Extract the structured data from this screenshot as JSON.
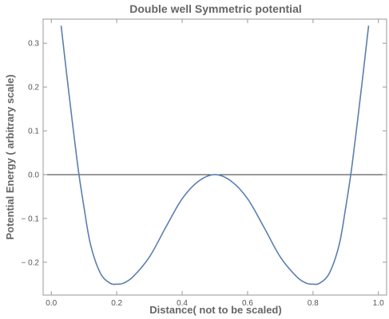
{
  "chart_data": {
    "type": "line",
    "title": "Double well Symmetric potential",
    "xlabel": "Distance( not to be scaled)",
    "ylabel": "Potential Energy ( arbitrary scale)",
    "xlim": [
      -0.025,
      1.025
    ],
    "ylim": [
      -0.275,
      0.355
    ],
    "x_ticks": [
      0.0,
      0.2,
      0.4,
      0.6,
      0.8,
      1.0
    ],
    "x_tick_labels": [
      "0.0",
      "0.2",
      "0.4",
      "0.6",
      "0.8",
      "1.0"
    ],
    "y_ticks": [
      -0.2,
      -0.1,
      0.0,
      0.1,
      0.2,
      0.3
    ],
    "y_tick_labels": [
      "− 0.2",
      "− 0.1",
      "0.0",
      "0.1",
      "0.2",
      "0.3"
    ],
    "series": [
      {
        "color": "#5b7fae",
        "x": [
          0.03,
          0.05,
          0.08,
          0.1,
          0.12,
          0.15,
          0.18,
          0.2,
          0.22,
          0.25,
          0.3,
          0.35,
          0.4,
          0.45,
          0.5,
          0.55,
          0.6,
          0.65,
          0.7,
          0.75,
          0.78,
          0.8,
          0.82,
          0.85,
          0.88,
          0.9,
          0.92,
          0.95,
          0.97
        ],
        "y": [
          0.34,
          0.21,
          0.025,
          -0.075,
          -0.16,
          -0.225,
          -0.248,
          -0.25,
          -0.248,
          -0.233,
          -0.188,
          -0.12,
          -0.055,
          -0.015,
          0.0,
          -0.015,
          -0.055,
          -0.12,
          -0.188,
          -0.233,
          -0.248,
          -0.25,
          -0.248,
          -0.225,
          -0.16,
          -0.075,
          0.025,
          0.21,
          0.34
        ]
      }
    ],
    "reference_line_y": 0.0,
    "grid": false
  }
}
